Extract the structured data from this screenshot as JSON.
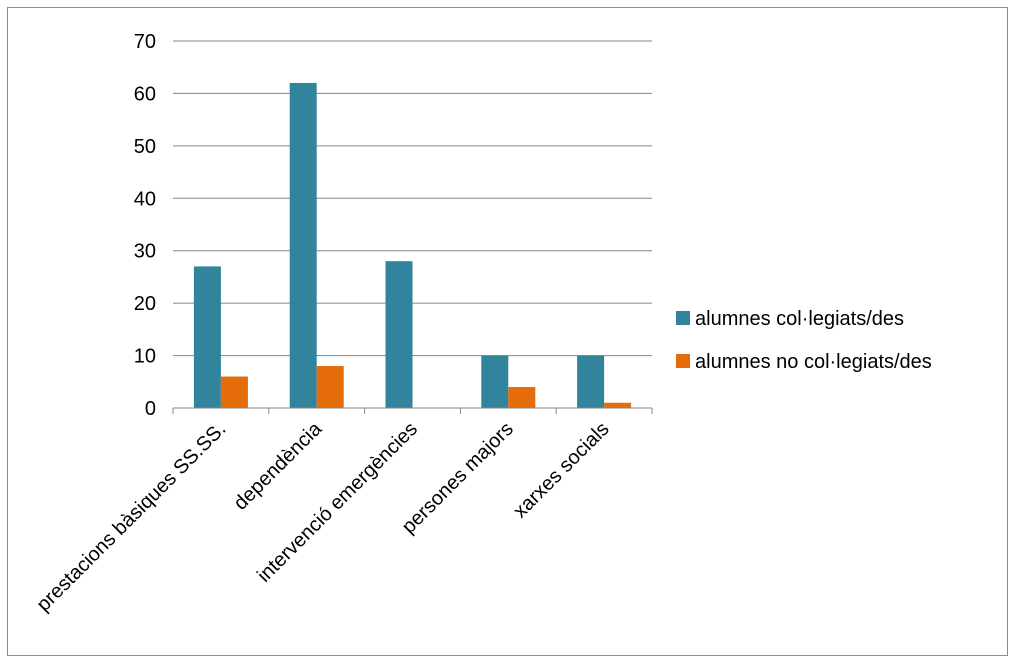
{
  "chart_data": {
    "type": "bar",
    "title": "",
    "xlabel": "",
    "ylabel": "",
    "categories": [
      "prestacions bàsiques SS.SS.",
      "dependència",
      "intervenció emergències",
      "persones majors",
      "xarxes socials"
    ],
    "series": [
      {
        "name": "alumnes col·legiats/des",
        "color": "#31849b",
        "values": [
          27,
          62,
          28,
          10,
          10
        ]
      },
      {
        "name": "alumnes no col·legiats/des",
        "color": "#e46c0a",
        "values": [
          6,
          8,
          0,
          4,
          1
        ]
      }
    ],
    "ylim": [
      0,
      70
    ],
    "yticks": [
      0,
      10,
      20,
      30,
      40,
      50,
      60,
      70
    ],
    "grid": true,
    "legend_position": "right"
  }
}
